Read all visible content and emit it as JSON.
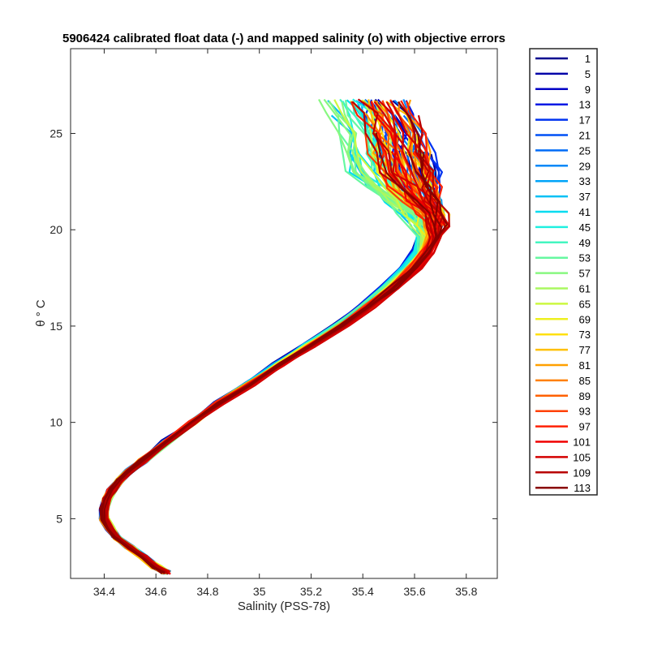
{
  "chart_data": {
    "type": "line",
    "title": "5906424 calibrated float data (-) and mapped salinity (o) with objective errors",
    "xlabel": "Salinity (PSS-78)",
    "ylabel": "θ ° C",
    "xlim": [
      34.27,
      35.92
    ],
    "ylim": [
      1.9,
      29.4
    ],
    "x_ticks": [
      34.4,
      34.6,
      34.8,
      35,
      35.2,
      35.4,
      35.6,
      35.8
    ],
    "x_tick_labels": [
      "34.4",
      "34.6",
      "34.8",
      "35",
      "35.2",
      "35.4",
      "35.6",
      "35.8"
    ],
    "y_ticks": [
      5,
      10,
      15,
      20,
      25
    ],
    "y_tick_labels": [
      "5",
      "10",
      "15",
      "20",
      "25"
    ],
    "grid": false,
    "legend_position": "outside-right",
    "colormap": "jet",
    "legend_title": "",
    "series": [
      {
        "name": "1",
        "color": "#00008f"
      },
      {
        "name": "5",
        "color": "#0000a8"
      },
      {
        "name": "9",
        "color": "#0000c6"
      },
      {
        "name": "13",
        "color": "#0019e4"
      },
      {
        "name": "17",
        "color": "#0033f0"
      },
      {
        "name": "21",
        "color": "#0050f5"
      },
      {
        "name": "25",
        "color": "#006cf7"
      },
      {
        "name": "29",
        "color": "#0088f8"
      },
      {
        "name": "33",
        "color": "#00a4f8"
      },
      {
        "name": "37",
        "color": "#00c0f5"
      },
      {
        "name": "41",
        "color": "#00dcf0"
      },
      {
        "name": "45",
        "color": "#20f0e0"
      },
      {
        "name": "49",
        "color": "#44f6c0"
      },
      {
        "name": "53",
        "color": "#66f8a0"
      },
      {
        "name": "57",
        "color": "#88f880"
      },
      {
        "name": "61",
        "color": "#aaf860"
      },
      {
        "name": "65",
        "color": "#ccf840"
      },
      {
        "name": "69",
        "color": "#eef020"
      },
      {
        "name": "73",
        "color": "#ffe010"
      },
      {
        "name": "77",
        "color": "#ffc000"
      },
      {
        "name": "81",
        "color": "#ffa000"
      },
      {
        "name": "85",
        "color": "#ff8000"
      },
      {
        "name": "89",
        "color": "#ff6000"
      },
      {
        "name": "93",
        "color": "#ff4000"
      },
      {
        "name": "97",
        "color": "#ff2000"
      },
      {
        "name": "101",
        "color": "#f00000"
      },
      {
        "name": "105",
        "color": "#d40000"
      },
      {
        "name": "109",
        "color": "#b80000"
      },
      {
        "name": "113",
        "color": "#8a0000"
      }
    ],
    "base_profile": {
      "theta": [
        2.2,
        2.5,
        3.0,
        3.5,
        4.0,
        4.5,
        5.0,
        5.5,
        6.0,
        6.5,
        7.0,
        7.5,
        8.0,
        9.0,
        10.0,
        11.0,
        12.0,
        13.0,
        14.0,
        15.0,
        16.0,
        17.0,
        18.0,
        18.8,
        19.6,
        20.2,
        20.8,
        21.5,
        22.2,
        23.0,
        24.0,
        25.0,
        26.0,
        26.7
      ],
      "salinity": [
        34.64,
        34.6,
        34.55,
        34.5,
        34.45,
        34.42,
        34.4,
        34.4,
        34.41,
        34.43,
        34.46,
        34.5,
        34.55,
        34.64,
        34.74,
        34.84,
        34.96,
        35.07,
        35.19,
        35.31,
        35.41,
        35.5,
        35.58,
        35.63,
        35.66,
        35.67,
        35.66,
        35.63,
        35.6,
        35.57,
        35.55,
        35.53,
        35.5,
        35.47
      ]
    }
  }
}
